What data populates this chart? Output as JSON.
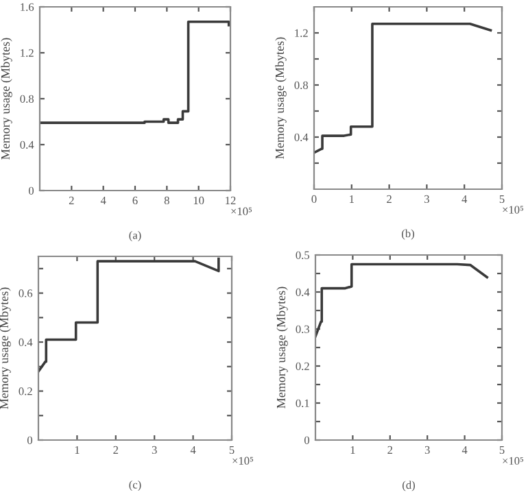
{
  "chart_data": [
    {
      "type": "line",
      "ylabel": "Memory usage (Mbytes)",
      "annotations": [
        "×10⁵",
        "(a)"
      ],
      "xlim": [
        0,
        12
      ],
      "ylim": [
        0,
        1.6
      ],
      "xticks": [
        2,
        4,
        6,
        8,
        10,
        12
      ],
      "yticks": [
        0,
        0.4,
        0.8,
        1.2,
        1.6
      ],
      "grid": false,
      "series": [
        {
          "color": "#3a3a3a",
          "x": [
            0,
            6.6,
            6.6,
            7.8,
            7.8,
            8.1,
            8.1,
            8.7,
            8.7,
            9.0,
            9.0,
            9.35,
            9.35,
            11.9,
            11.9
          ],
          "values": [
            0.59,
            0.59,
            0.6,
            0.6,
            0.62,
            0.62,
            0.59,
            0.59,
            0.62,
            0.62,
            0.69,
            0.69,
            1.47,
            1.47,
            1.44
          ]
        }
      ]
    },
    {
      "type": "line",
      "ylabel": "Memory usage (Mbytes)",
      "annotations": [
        "×10⁵",
        "(b)"
      ],
      "xlim": [
        0,
        5
      ],
      "ylim": [
        0,
        1.4
      ],
      "xticks": [
        0,
        1,
        2,
        3,
        4,
        5
      ],
      "yticks": [
        {
          "value": 0.2,
          "label": null
        },
        0.4,
        {
          "value": 0.6,
          "label": null
        },
        0.8,
        {
          "value": 1.0,
          "label": null
        },
        1.2
      ],
      "grid": false,
      "series": [
        {
          "color": "#3a3a3a",
          "x": [
            0,
            0.2,
            0.22,
            0.22,
            0.8,
            0.98,
            0.98,
            1.55,
            1.55,
            4.15,
            4.7
          ],
          "values": [
            0.28,
            0.31,
            0.31,
            0.41,
            0.41,
            0.42,
            0.48,
            0.48,
            1.27,
            1.27,
            1.22
          ]
        }
      ]
    },
    {
      "type": "line",
      "ylabel": "Memory usage (Mbytes)",
      "annotations": [
        "×10⁵",
        "(c)"
      ],
      "xlim": [
        0,
        5
      ],
      "ylim": [
        0,
        0.75
      ],
      "xticks": [
        1,
        2,
        3,
        4,
        5
      ],
      "yticks": [
        0,
        {
          "value": 0.1,
          "label": null
        },
        0.2,
        {
          "value": 0.3,
          "label": null
        },
        0.4,
        {
          "value": 0.5,
          "label": null
        },
        0.6,
        {
          "value": 0.7,
          "label": null
        }
      ],
      "grid": false,
      "series": [
        {
          "color": "#3a3a3a",
          "x": [
            0,
            0.18,
            0.2,
            0.2,
            0.8,
            0.97,
            0.97,
            1.53,
            1.53,
            4.05,
            4.66,
            4.66
          ],
          "values": [
            0.28,
            0.32,
            0.32,
            0.41,
            0.41,
            0.41,
            0.48,
            0.48,
            0.73,
            0.73,
            0.69,
            0.74
          ]
        }
      ]
    },
    {
      "type": "line",
      "ylabel": "Memory usage (Mbytes)",
      "annotations": [
        "×10⁵",
        "(d)"
      ],
      "xlim": [
        0,
        5
      ],
      "ylim": [
        0,
        0.5
      ],
      "xticks": [
        1,
        2,
        3,
        4,
        5
      ],
      "yticks": [
        0,
        {
          "value": 0.05,
          "label": null
        },
        0.1,
        {
          "value": 0.15,
          "label": null
        },
        0.2,
        {
          "value": 0.25,
          "label": null
        },
        0.3,
        {
          "value": 0.35,
          "label": null
        },
        0.4,
        {
          "value": 0.45,
          "label": null
        },
        0.5
      ],
      "grid": false,
      "series": [
        {
          "color": "#3a3a3a",
          "x": [
            0,
            0.15,
            0.17,
            0.17,
            0.8,
            0.97,
            0.97,
            3.8,
            4.15,
            4.6
          ],
          "values": [
            0.28,
            0.32,
            0.32,
            0.41,
            0.41,
            0.415,
            0.475,
            0.475,
            0.473,
            0.44
          ]
        }
      ]
    }
  ]
}
